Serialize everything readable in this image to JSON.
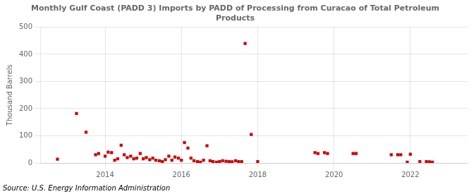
{
  "chart_data": {
    "type": "scatter",
    "title": "Monthly Gulf Coast (PADD 3) Imports by PADD of Processing from Curacao of Total Petroleum\nProducts",
    "y_label": "Thousand Barrels",
    "annotation": "Source: U.S. Energy Information Administration",
    "color": "#cc0000",
    "marker": "square",
    "grid": true,
    "xlim": [
      2012.3,
      2023.5
    ],
    "xticks": [
      2014,
      2016,
      2018,
      2020,
      2022
    ],
    "ylim": [
      0,
      500
    ],
    "yticks": [
      0,
      100,
      200,
      300,
      400,
      500
    ],
    "x": [
      2012.75,
      2013.25,
      2013.5,
      2013.75,
      2013.83,
      2014.0,
      2014.08,
      2014.17,
      2014.25,
      2014.33,
      2014.42,
      2014.5,
      2014.58,
      2014.67,
      2014.75,
      2014.83,
      2014.92,
      2015.0,
      2015.08,
      2015.17,
      2015.25,
      2015.33,
      2015.42,
      2015.5,
      2015.58,
      2015.67,
      2015.75,
      2015.83,
      2015.92,
      2016.0,
      2016.08,
      2016.17,
      2016.25,
      2016.33,
      2016.42,
      2016.5,
      2016.58,
      2016.67,
      2016.75,
      2016.83,
      2016.92,
      2017.0,
      2017.08,
      2017.17,
      2017.25,
      2017.33,
      2017.42,
      2017.5,
      2017.58,
      2017.67,
      2017.83,
      2018.0,
      2019.5,
      2019.58,
      2019.75,
      2019.83,
      2020.5,
      2020.58,
      2021.5,
      2021.67,
      2021.75,
      2021.92,
      2022.0,
      2022.25,
      2022.42,
      2022.5,
      2022.58
    ],
    "values": [
      14,
      182,
      113,
      30,
      35,
      25,
      40,
      38,
      10,
      15,
      65,
      30,
      20,
      25,
      15,
      18,
      35,
      15,
      20,
      12,
      18,
      10,
      8,
      5,
      12,
      25,
      10,
      22,
      18,
      10,
      75,
      55,
      18,
      8,
      5,
      3,
      10,
      63,
      8,
      5,
      3,
      5,
      8,
      6,
      5,
      4,
      8,
      5,
      5,
      440,
      105,
      5,
      38,
      35,
      38,
      35,
      35,
      35,
      30,
      30,
      30,
      3,
      32,
      5,
      5,
      4,
      3
    ]
  }
}
